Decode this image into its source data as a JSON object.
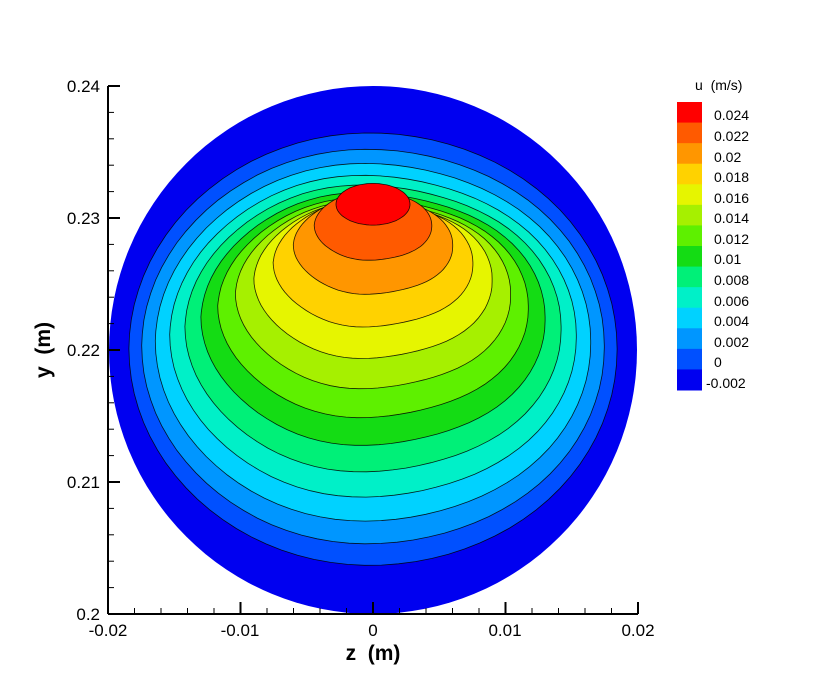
{
  "chart_data": {
    "type": "heatmap",
    "subtype": "filled-contour",
    "xlabel": "z  (m)",
    "ylabel": "y  (m)",
    "xlim": [
      -0.02,
      0.02
    ],
    "ylim": [
      0.2,
      0.24
    ],
    "x_ticks": [
      "-0.02",
      "-0.01",
      "0",
      "0.01",
      "0.02"
    ],
    "y_ticks": [
      "0.2",
      "0.21",
      "0.22",
      "0.23",
      "0.24"
    ],
    "x_tick_values": [
      -0.02,
      -0.01,
      0,
      0.01,
      0.02
    ],
    "y_tick_values": [
      0.2,
      0.21,
      0.22,
      0.23,
      0.24
    ],
    "domain": {
      "shape": "circle",
      "center_z": 0.0,
      "center_y": 0.22,
      "radius": 0.02
    },
    "colorbar": {
      "title": "u  (m/s)",
      "placement": "right",
      "levels": [
        {
          "label": "0.024",
          "value": 0.024,
          "color": "#ff0000"
        },
        {
          "label": "0.022",
          "value": 0.022,
          "color": "#ff5a00"
        },
        {
          "label": "0.02",
          "value": 0.02,
          "color": "#ff9600"
        },
        {
          "label": "0.018",
          "value": 0.018,
          "color": "#ffd200"
        },
        {
          "label": "0.016",
          "value": 0.016,
          "color": "#e6f500"
        },
        {
          "label": "0.014",
          "value": 0.014,
          "color": "#a6f000"
        },
        {
          "label": "0.012",
          "value": 0.012,
          "color": "#5ef000"
        },
        {
          "label": "0.01",
          "value": 0.01,
          "color": "#14dc14"
        },
        {
          "label": "0.008",
          "value": 0.008,
          "color": "#00f078"
        },
        {
          "label": "0.006",
          "value": 0.006,
          "color": "#00f0c8"
        },
        {
          "label": "0.004",
          "value": 0.004,
          "color": "#00d2ff"
        },
        {
          "label": "0.002",
          "value": 0.002,
          "color": "#0096ff"
        },
        {
          "label": "0",
          "value": 0.0,
          "color": "#0050ff"
        },
        {
          "label": "-0.002",
          "value": -0.002,
          "color": "#0000f0"
        }
      ]
    },
    "grid": false,
    "legend": "right"
  }
}
